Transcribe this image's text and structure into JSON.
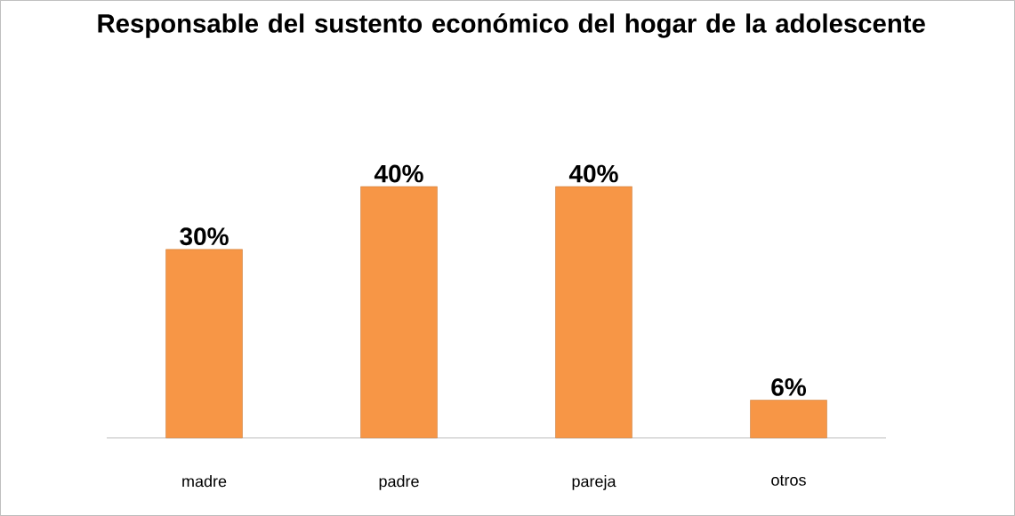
{
  "chart_data": {
    "type": "bar",
    "title": "Responsable del sustento económico del hogar de la adolescente",
    "categories": [
      "madre",
      "padre",
      "pareja",
      "otros"
    ],
    "values": [
      30,
      40,
      40,
      6
    ],
    "value_labels": [
      "30%",
      "40%",
      "40%",
      "6%"
    ],
    "color": "#f79646"
  }
}
